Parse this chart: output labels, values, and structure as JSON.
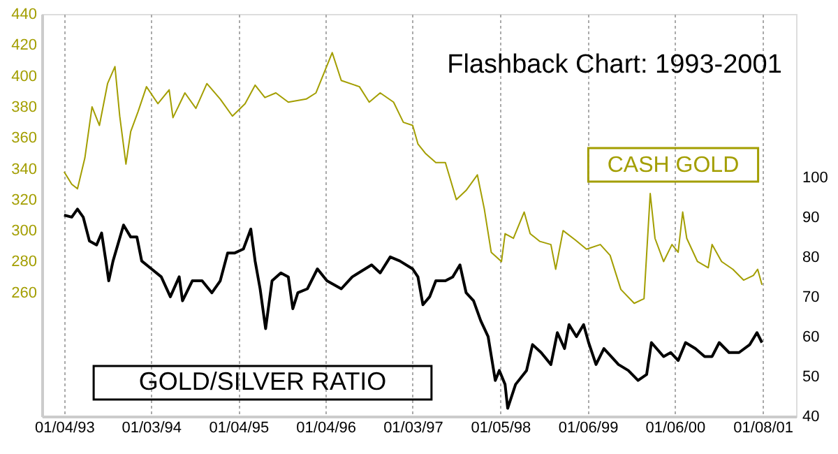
{
  "chart_data": {
    "type": "line",
    "title": "Flashback Chart: 1993-2001",
    "grid": "x",
    "xlim": [
      "1992-10-03",
      "2001-05-28"
    ],
    "xticks": [
      {
        "value": "1993-01-04",
        "label": "01/04/93"
      },
      {
        "value": "1994-01-03",
        "label": "01/03/94"
      },
      {
        "value": "1995-01-04",
        "label": "01/04/95"
      },
      {
        "value": "1996-01-04",
        "label": "01/04/96"
      },
      {
        "value": "1997-01-03",
        "label": "01/03/97"
      },
      {
        "value": "1998-01-05",
        "label": "01/05/98"
      },
      {
        "value": "1999-01-06",
        "label": "01/06/99"
      },
      {
        "value": "2000-01-06",
        "label": "01/06/00"
      },
      {
        "value": "2001-01-08",
        "label": "01/08/01"
      }
    ],
    "ylim": [
      180,
      440
    ],
    "yticks": [
      260,
      280,
      300,
      320,
      340,
      360,
      380,
      400,
      420,
      440
    ],
    "y2lim": [
      40,
      141
    ],
    "y2ticks": [
      40,
      50,
      60,
      70,
      80,
      90,
      100
    ],
    "series": [
      {
        "name": "CASH GOLD",
        "color": "#a39e00",
        "x": [
          "1993-01-04",
          "1993-02-05",
          "1993-03-01",
          "1993-04-01",
          "1993-05-01",
          "1993-06-01",
          "1993-07-05",
          "1993-08-05",
          "1993-08-25",
          "1993-09-20",
          "1993-10-10",
          "1993-11-10",
          "1993-12-15",
          "1994-02-01",
          "1994-03-20",
          "1994-04-05",
          "1994-05-25",
          "1994-07-10",
          "1994-08-25",
          "1994-10-20",
          "1994-12-10",
          "1995-02-01",
          "1995-03-15",
          "1995-04-25",
          "1995-06-10",
          "1995-08-01",
          "1995-10-15",
          "1995-11-25",
          "1996-02-01",
          "1996-03-10",
          "1996-05-25",
          "1996-07-05",
          "1996-08-20",
          "1996-10-15",
          "1996-11-25",
          "1997-01-03",
          "1997-01-25",
          "1997-02-25",
          "1997-04-10",
          "1997-05-20",
          "1997-07-05",
          "1997-08-15",
          "1997-10-01",
          "1997-10-30",
          "1997-11-28",
          "1998-01-10",
          "1998-01-25",
          "1998-03-01",
          "1998-04-15",
          "1998-05-10",
          "1998-06-20",
          "1998-08-05",
          "1998-08-25",
          "1998-09-25",
          "1998-11-15",
          "1999-01-01",
          "1999-02-28",
          "1999-04-10",
          "1999-05-25",
          "1999-07-20",
          "1999-08-30",
          "1999-09-25",
          "1999-10-15",
          "1999-11-20",
          "1999-12-25",
          "2000-01-20",
          "2000-02-08",
          "2000-02-25",
          "2000-04-10",
          "2000-05-25",
          "2000-06-10",
          "2000-07-20",
          "2000-09-05",
          "2000-10-20",
          "2000-11-30",
          "2000-12-18",
          "2001-01-05"
        ],
        "values": [
          338,
          330,
          327,
          347,
          380,
          368,
          395,
          406,
          374,
          343,
          364,
          377,
          393,
          382,
          391,
          373,
          389,
          379,
          395,
          385,
          374,
          382,
          394,
          386,
          389,
          383,
          385,
          389,
          415,
          397,
          393,
          383,
          389,
          383,
          370,
          368,
          356,
          350,
          344,
          344,
          320,
          326,
          336,
          314,
          286,
          280,
          298,
          295,
          312,
          298,
          293,
          291,
          275,
          300,
          294,
          288,
          291,
          284,
          262,
          253,
          256,
          324,
          295,
          280,
          291,
          286,
          312,
          295,
          280,
          276,
          291,
          280,
          275,
          268,
          271,
          275,
          265
        ]
      },
      {
        "name": "GOLD/SILVER RATIO",
        "color": "#000000",
        "axis": "y2",
        "x": [
          "1993-01-04",
          "1993-02-05",
          "1993-03-01",
          "1993-03-25",
          "1993-04-20",
          "1993-05-20",
          "1993-06-10",
          "1993-06-28",
          "1993-07-10",
          "1993-07-28",
          "1993-09-10",
          "1993-10-10",
          "1993-11-05",
          "1993-11-25",
          "1994-01-05",
          "1994-02-15",
          "1994-03-25",
          "1994-05-01",
          "1994-05-15",
          "1994-06-25",
          "1994-08-05",
          "1994-09-15",
          "1994-10-20",
          "1994-11-20",
          "1994-12-20",
          "1995-01-25",
          "1995-02-25",
          "1995-03-15",
          "1995-04-05",
          "1995-04-28",
          "1995-05-25",
          "1995-07-01",
          "1995-08-01",
          "1995-08-20",
          "1995-09-10",
          "1995-10-20",
          "1995-12-01",
          "1996-01-10",
          "1996-03-10",
          "1996-04-25",
          "1996-07-15",
          "1996-08-20",
          "1996-10-01",
          "1996-11-10",
          "1997-01-03",
          "1997-01-25",
          "1997-02-15",
          "1997-03-15",
          "1997-04-10",
          "1997-05-20",
          "1997-06-20",
          "1997-07-20",
          "1997-08-15",
          "1997-09-15",
          "1997-10-15",
          "1997-11-15",
          "1997-12-15",
          "1998-01-01",
          "1998-01-25",
          "1998-02-05",
          "1998-03-10",
          "1998-04-25",
          "1998-05-20",
          "1998-06-25",
          "1998-08-05",
          "1998-09-01",
          "1998-10-01",
          "1998-10-20",
          "1998-11-20",
          "1998-12-20",
          "1999-01-10",
          "1999-02-10",
          "1999-03-15",
          "1999-05-15",
          "1999-06-25",
          "1999-08-05",
          "1999-09-10",
          "1999-09-30",
          "1999-11-20",
          "1999-12-20",
          "2000-01-20",
          "2000-02-20",
          "2000-04-01",
          "2000-05-10",
          "2000-06-10",
          "2000-07-10",
          "2000-08-20",
          "2000-10-01",
          "2000-11-15",
          "2000-12-15",
          "2001-01-05"
        ],
        "values": [
          90.5,
          90,
          92,
          90,
          84,
          83,
          86,
          79,
          74,
          79,
          88,
          85,
          85,
          79,
          77,
          75,
          70,
          75,
          69,
          74,
          74,
          71,
          74,
          81,
          81,
          82,
          87,
          79,
          72,
          62,
          74,
          76,
          75,
          67,
          71,
          72,
          77,
          74,
          72,
          75,
          78,
          76,
          80,
          79,
          77,
          75,
          68,
          70,
          74,
          74,
          75,
          78,
          71,
          69,
          64,
          60,
          49,
          51.5,
          48,
          42,
          48,
          51.5,
          58,
          56,
          53,
          61,
          57,
          63,
          60,
          63,
          58.5,
          53,
          57,
          53,
          51.5,
          49,
          50.5,
          58.5,
          55,
          56,
          54,
          58.5,
          57,
          55,
          55,
          58.5,
          56,
          56,
          58,
          61,
          58.5
        ]
      }
    ]
  }
}
